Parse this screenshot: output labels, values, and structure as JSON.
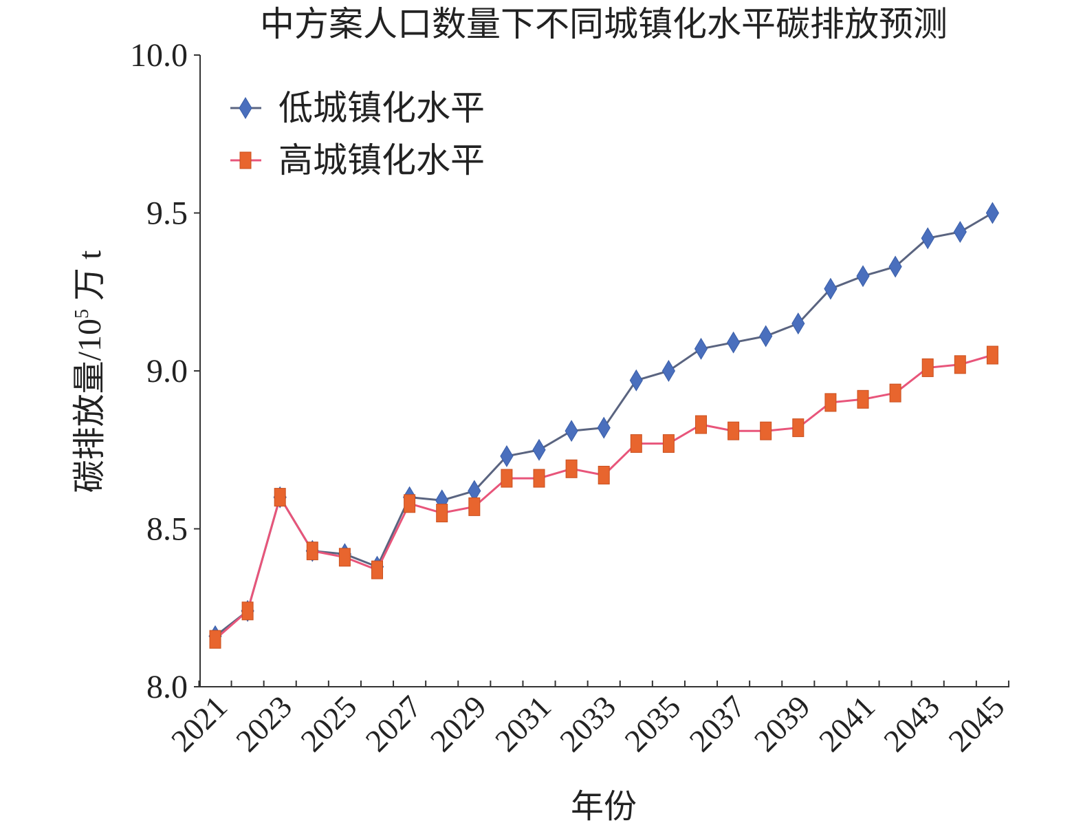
{
  "chart_data": {
    "type": "line",
    "title": "中方案人口数量下不同城镇化水平碳排放预测",
    "xlabel": "年份",
    "ylabel_main": "碳排放量/10",
    "ylabel_sup": "5",
    "ylabel_unit": " 万 t",
    "ylim": [
      8.0,
      10.0
    ],
    "yticks": [
      8.0,
      8.5,
      9.0,
      9.5,
      10.0
    ],
    "ytick_labels": [
      "8.0",
      "8.5",
      "9.0",
      "9.5",
      "10.0"
    ],
    "x": [
      2021,
      2022,
      2023,
      2024,
      2025,
      2026,
      2027,
      2028,
      2029,
      2030,
      2031,
      2032,
      2033,
      2034,
      2035,
      2036,
      2037,
      2038,
      2039,
      2040,
      2041,
      2042,
      2043,
      2044,
      2045
    ],
    "xtick_labels": [
      "2021",
      "2023",
      "2025",
      "2027",
      "2029",
      "2031",
      "2033",
      "2035",
      "2037",
      "2039",
      "2041",
      "2043",
      "2045"
    ],
    "legend_position": "top-left",
    "grid": false,
    "series": [
      {
        "name": "低城镇化水平",
        "color": "#4a6fbd",
        "line_color": "#5a6480",
        "marker": "diamond",
        "values": [
          8.16,
          8.24,
          8.6,
          8.43,
          8.42,
          8.38,
          8.6,
          8.59,
          8.62,
          8.73,
          8.75,
          8.81,
          8.82,
          8.97,
          9.0,
          9.07,
          9.09,
          9.11,
          9.15,
          9.26,
          9.3,
          9.33,
          9.42,
          9.44,
          9.5
        ]
      },
      {
        "name": "高城镇化水平",
        "color": "#e8652e",
        "line_color": "#e8557a",
        "marker": "square",
        "values": [
          8.15,
          8.24,
          8.6,
          8.43,
          8.41,
          8.37,
          8.58,
          8.55,
          8.57,
          8.66,
          8.66,
          8.69,
          8.67,
          8.77,
          8.77,
          8.83,
          8.81,
          8.81,
          8.82,
          8.9,
          8.91,
          8.93,
          9.01,
          9.02,
          9.05
        ]
      }
    ]
  }
}
